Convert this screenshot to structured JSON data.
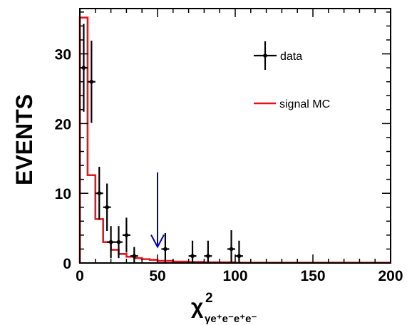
{
  "chart_data": {
    "type": "line",
    "xlabel": "χ",
    "xlabel_superscript": "2",
    "xlabel_subscript": "γe⁺e⁻e⁺e⁻",
    "ylabel": "EVENTS",
    "xlim": [
      0,
      200
    ],
    "ylim": [
      0,
      36.5
    ],
    "x_ticks": [
      "0",
      "50",
      "100",
      "150",
      "200"
    ],
    "y_ticks": [
      "0",
      "10",
      "20",
      "30"
    ],
    "x_tick_values": [
      0,
      50,
      100,
      150,
      200
    ],
    "y_tick_values": [
      0,
      10,
      20,
      30
    ],
    "legend_position": "top-right",
    "series": [
      {
        "name": "data",
        "style": "points-with-error-bars",
        "color": "#000000",
        "x_err": 2.5,
        "points": [
          {
            "x": 2.5,
            "y": 28,
            "err": 6.3
          },
          {
            "x": 7.5,
            "y": 26,
            "err": 5.9
          },
          {
            "x": 12.5,
            "y": 10,
            "err": 3.8
          },
          {
            "x": 17.5,
            "y": 8,
            "err": 3.4
          },
          {
            "x": 20,
            "y": 3,
            "err": 2.3
          },
          {
            "x": 25,
            "y": 3,
            "err": 2.3
          },
          {
            "x": 30,
            "y": 4,
            "err": 2.5
          },
          {
            "x": 35,
            "y": 1,
            "err": 1.3
          },
          {
            "x": 55,
            "y": 2,
            "err": 2.3
          },
          {
            "x": 72.5,
            "y": 1,
            "err": 2.2
          },
          {
            "x": 82.5,
            "y": 1,
            "err": 2.2
          },
          {
            "x": 97.5,
            "y": 2,
            "err": 2.7
          },
          {
            "x": 102.5,
            "y": 1,
            "err": 2.2
          }
        ]
      },
      {
        "name": "signal MC",
        "style": "step-histogram",
        "color": "#e8141c",
        "bin_edges": [
          0,
          5,
          10,
          15,
          20,
          25,
          30,
          35,
          40,
          45,
          50,
          60,
          70,
          80,
          100,
          200
        ],
        "values": [
          35.2,
          12.6,
          6.3,
          3.0,
          1.9,
          1.3,
          0.9,
          0.7,
          0.55,
          0.45,
          0.3,
          0.2,
          0.15,
          0.1,
          0.05
        ]
      }
    ],
    "annotations": [
      {
        "type": "arrow",
        "x": 50,
        "y_from": 13,
        "y_to": 2.3,
        "color": "#0000cc"
      }
    ]
  }
}
